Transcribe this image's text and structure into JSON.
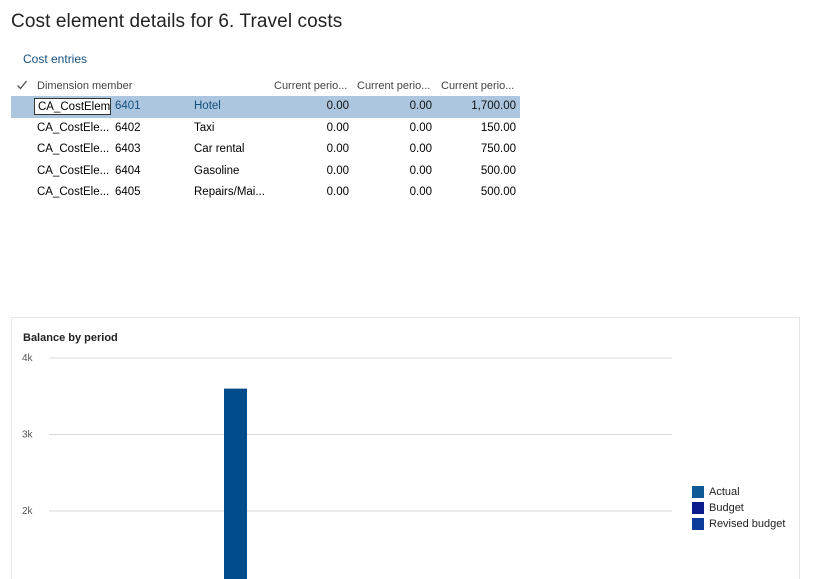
{
  "page": {
    "title": "Cost element details for 6. Travel costs",
    "section_link": "Cost entries"
  },
  "grid": {
    "headers": {
      "member": "Dimension member",
      "col1": "Current perio...",
      "col2": "Current perio...",
      "col3": "Current perio..."
    },
    "rows": [
      {
        "member": "CA_CostElem",
        "code": "6401",
        "desc": "Hotel",
        "c1": "0.00",
        "c2": "0.00",
        "c3": "1,700.00",
        "selected": true
      },
      {
        "member": "CA_CostEle...",
        "code": "6402",
        "desc": "Taxi",
        "c1": "0.00",
        "c2": "0.00",
        "c3": "150.00"
      },
      {
        "member": "CA_CostEle...",
        "code": "6403",
        "desc": "Car rental",
        "c1": "0.00",
        "c2": "0.00",
        "c3": "750.00"
      },
      {
        "member": "CA_CostEle...",
        "code": "6404",
        "desc": "Gasoline",
        "c1": "0.00",
        "c2": "0.00",
        "c3": "500.00"
      },
      {
        "member": "CA_CostEle...",
        "code": "6405",
        "desc": "Repairs/Mai...",
        "c1": "0.00",
        "c2": "0.00",
        "c3": "500.00"
      }
    ]
  },
  "chart_data": {
    "type": "bar",
    "title": "Balance by period",
    "xlabel": "",
    "ylabel": "",
    "y_tick_labels": [
      "4k",
      "3k",
      "2k"
    ],
    "y_ticks": [
      4000,
      3000,
      2000
    ],
    "grid": true,
    "legend_position": "right",
    "series": [
      {
        "name": "Actual",
        "color": "#0f5a94",
        "values": [
          3600
        ]
      },
      {
        "name": "Budget",
        "color": "#0a1c8c",
        "values": [
          0
        ]
      },
      {
        "name": "Revised budget",
        "color": "#0b3b9a",
        "values": [
          0
        ]
      }
    ],
    "categories": [
      ""
    ],
    "visible_bar_color": "#004c8c"
  }
}
